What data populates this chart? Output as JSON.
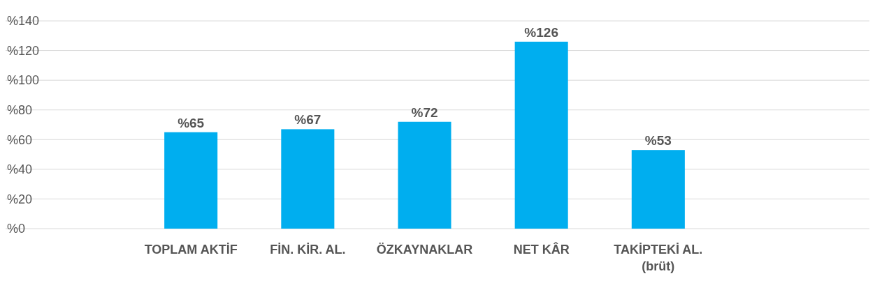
{
  "chart_data": {
    "type": "bar",
    "categories": [
      "TOPLAM AKTİF",
      "FİN. KİR. AL.",
      "ÖZKAYNAKLAR",
      "NET KÂR",
      "TAKİPTEKİ AL. (brüt)"
    ],
    "values": [
      65,
      67,
      72,
      126,
      53
    ],
    "value_labels": [
      "%65",
      "%67",
      "%72",
      "%126",
      "%53"
    ],
    "color": "#00aeef",
    "ylim": [
      0,
      140
    ],
    "yticks": [
      {
        "value": 0,
        "label": "%0"
      },
      {
        "value": 20,
        "label": "%20"
      },
      {
        "value": 40,
        "label": "%40"
      },
      {
        "value": 60,
        "label": "%60"
      },
      {
        "value": 80,
        "label": "%80"
      },
      {
        "value": 100,
        "label": "%100"
      },
      {
        "value": 120,
        "label": "%120"
      },
      {
        "value": 140,
        "label": "%140"
      }
    ],
    "grid": "y"
  }
}
